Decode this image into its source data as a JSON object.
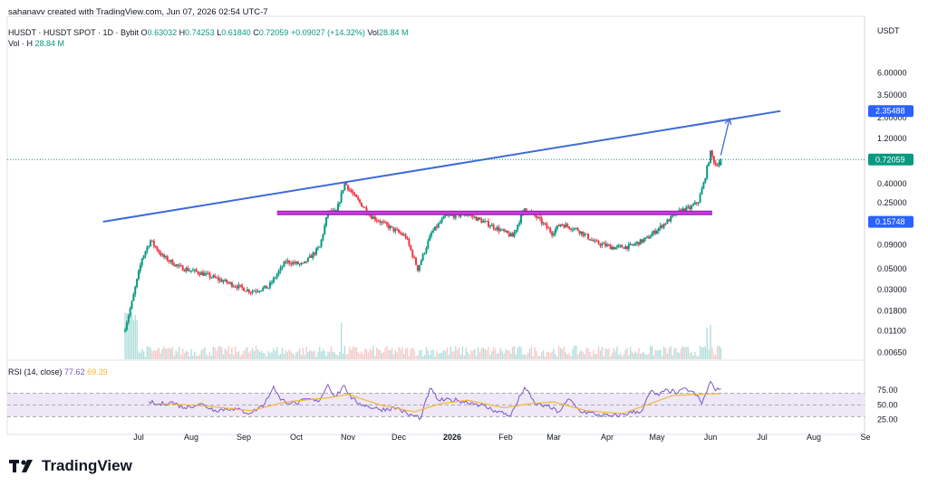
{
  "header": {
    "caption": "sahanavv created with TradingView.com, Jun 07, 2026 02:54 UTC-7",
    "symbol": "HUSDT · HUSDT SPOT · 1D · Bybit",
    "open_label": "O",
    "open": "0.63032",
    "high_label": "H",
    "high": "0.74253",
    "low_label": "L",
    "low": "0.61840",
    "close_label": "C",
    "close": "0.72059",
    "change": "+0.09027 (+14.32%)",
    "vol_label": "Vol",
    "vol": "28.84 M",
    "vol_h_label": "Vol · H",
    "vol_h": "28.84 M"
  },
  "rsi": {
    "label": "RSI (14, close)",
    "value": "77.62",
    "ma": "69.39"
  },
  "brand": "TradingView",
  "colors": {
    "up": "#089981",
    "down": "#f23645",
    "trendline": "#3d6bd6",
    "support": "#9c27b0",
    "support_core": "#e040fb",
    "rsi_line": "#7e57c2",
    "rsi_ma": "#f7b32b",
    "rsi_band": "#ede7f6",
    "price_badge": "#089981",
    "blue_badge": "#2962ff"
  },
  "chart_data": [
    {
      "type": "candlestick",
      "title": "HUSDT · HUSDT SPOT · 1D · Bybit",
      "currency": "USDT",
      "y_scale": "log",
      "ylim": [
        0.0055,
        9.0
      ],
      "y_ticks": [
        "6.00000",
        "3.50000",
        "2.00000",
        "1.20000",
        "0.72059",
        "0.40000",
        "0.25000",
        "0.15748",
        "0.09000",
        "0.05000",
        "0.03000",
        "0.01800",
        "0.01100",
        "0.00650"
      ],
      "y_tick_values": [
        6.0,
        3.5,
        2.0,
        1.2,
        0.72059,
        0.4,
        0.25,
        0.15748,
        0.09,
        0.05,
        0.03,
        0.018,
        0.011,
        0.0065
      ],
      "x_ticks": [
        "Jul",
        "Aug",
        "Sep",
        "Oct",
        "Nov",
        "Dec",
        "2026",
        "Feb",
        "Mar",
        "Apr",
        "May",
        "Jun",
        "Jul",
        "Aug",
        "Se"
      ],
      "x_tick_dates": [
        "2025-07-01",
        "2025-08-01",
        "2025-09-01",
        "2025-10-01",
        "2025-11-01",
        "2025-12-01",
        "2026-01-01",
        "2026-02-01",
        "2026-03-01",
        "2026-04-01",
        "2026-05-01",
        "2026-06-01",
        "2026-07-01",
        "2026-08-01",
        "2026-09-01"
      ],
      "price_badges": [
        {
          "value": "2.35488",
          "kind": "trendline"
        },
        {
          "value": "0.72059",
          "kind": "last"
        },
        {
          "value": "0.15748",
          "kind": "support"
        }
      ],
      "close_anchors": [
        {
          "date": "2025-06-23",
          "close": 0.012
        },
        {
          "date": "2025-06-27",
          "close": 0.022
        },
        {
          "date": "2025-07-03",
          "close": 0.065
        },
        {
          "date": "2025-07-08",
          "close": 0.1
        },
        {
          "date": "2025-07-15",
          "close": 0.068
        },
        {
          "date": "2025-07-25",
          "close": 0.052
        },
        {
          "date": "2025-08-07",
          "close": 0.045
        },
        {
          "date": "2025-08-22",
          "close": 0.036
        },
        {
          "date": "2025-09-05",
          "close": 0.029
        },
        {
          "date": "2025-09-15",
          "close": 0.032
        },
        {
          "date": "2025-09-25",
          "close": 0.06
        },
        {
          "date": "2025-10-05",
          "close": 0.055
        },
        {
          "date": "2025-10-15",
          "close": 0.085
        },
        {
          "date": "2025-10-20",
          "close": 0.2
        },
        {
          "date": "2025-10-25",
          "close": 0.2
        },
        {
          "date": "2025-10-30",
          "close": 0.41
        },
        {
          "date": "2025-11-05",
          "close": 0.29
        },
        {
          "date": "2025-11-15",
          "close": 0.18
        },
        {
          "date": "2025-11-28",
          "close": 0.13
        },
        {
          "date": "2025-12-05",
          "close": 0.11
        },
        {
          "date": "2025-12-12",
          "close": 0.05
        },
        {
          "date": "2025-12-20",
          "close": 0.12
        },
        {
          "date": "2025-12-28",
          "close": 0.18
        },
        {
          "date": "2026-01-10",
          "close": 0.19
        },
        {
          "date": "2026-01-25",
          "close": 0.14
        },
        {
          "date": "2026-02-05",
          "close": 0.11
        },
        {
          "date": "2026-02-12",
          "close": 0.22
        },
        {
          "date": "2026-02-20",
          "close": 0.17
        },
        {
          "date": "2026-02-28",
          "close": 0.12
        },
        {
          "date": "2026-03-05",
          "close": 0.15
        },
        {
          "date": "2026-03-15",
          "close": 0.13
        },
        {
          "date": "2026-03-25",
          "close": 0.095
        },
        {
          "date": "2026-04-05",
          "close": 0.084
        },
        {
          "date": "2026-04-15",
          "close": 0.087
        },
        {
          "date": "2026-04-25",
          "close": 0.105
        },
        {
          "date": "2026-05-05",
          "close": 0.15
        },
        {
          "date": "2026-05-15",
          "close": 0.21
        },
        {
          "date": "2026-05-20",
          "close": 0.22
        },
        {
          "date": "2026-05-25",
          "close": 0.26
        },
        {
          "date": "2026-05-28",
          "close": 0.4
        },
        {
          "date": "2026-06-01",
          "close": 0.85
        },
        {
          "date": "2026-06-04",
          "close": 0.63
        },
        {
          "date": "2026-06-07",
          "close": 0.72059
        }
      ],
      "annotations": [
        {
          "type": "trendline",
          "from": {
            "date": "2025-06-10",
            "price": 0.158
          },
          "to": {
            "date": "2026-07-12",
            "price": 2.35488
          }
        },
        {
          "type": "horizontal_support",
          "price": 0.196,
          "from_date": "2025-09-20",
          "to_date": "2026-06-02"
        },
        {
          "type": "arrow",
          "from": {
            "date": "2026-06-07",
            "price": 0.8
          },
          "to": {
            "date": "2026-06-12",
            "price": 1.95
          }
        }
      ]
    },
    {
      "type": "line",
      "title": "RSI (14, close)",
      "ylim": [
        15,
        100
      ],
      "y_ticks": [
        "75.00",
        "50.00",
        "25.00"
      ],
      "y_tick_values": [
        75,
        50,
        25
      ],
      "band": [
        30,
        70
      ],
      "series": [
        {
          "name": "RSI",
          "points": [
            {
              "date": "2025-07-07",
              "value": 56
            },
            {
              "date": "2025-07-12",
              "value": 50
            },
            {
              "date": "2025-07-20",
              "value": 55
            },
            {
              "date": "2025-07-28",
              "value": 45
            },
            {
              "date": "2025-08-06",
              "value": 52
            },
            {
              "date": "2025-08-15",
              "value": 41
            },
            {
              "date": "2025-08-25",
              "value": 44
            },
            {
              "date": "2025-09-05",
              "value": 36
            },
            {
              "date": "2025-09-13",
              "value": 52
            },
            {
              "date": "2025-09-18",
              "value": 82
            },
            {
              "date": "2025-09-22",
              "value": 58
            },
            {
              "date": "2025-10-01",
              "value": 52
            },
            {
              "date": "2025-10-08",
              "value": 60
            },
            {
              "date": "2025-10-14",
              "value": 55
            },
            {
              "date": "2025-10-20",
              "value": 85
            },
            {
              "date": "2025-10-24",
              "value": 64
            },
            {
              "date": "2025-10-30",
              "value": 83
            },
            {
              "date": "2025-11-03",
              "value": 60
            },
            {
              "date": "2025-11-10",
              "value": 50
            },
            {
              "date": "2025-11-20",
              "value": 42
            },
            {
              "date": "2025-11-30",
              "value": 45
            },
            {
              "date": "2025-12-06",
              "value": 34
            },
            {
              "date": "2025-12-14",
              "value": 28
            },
            {
              "date": "2025-12-19",
              "value": 78
            },
            {
              "date": "2025-12-24",
              "value": 58
            },
            {
              "date": "2026-01-04",
              "value": 58
            },
            {
              "date": "2026-01-15",
              "value": 52
            },
            {
              "date": "2026-01-26",
              "value": 40
            },
            {
              "date": "2026-02-04",
              "value": 32
            },
            {
              "date": "2026-02-12",
              "value": 80
            },
            {
              "date": "2026-02-18",
              "value": 52
            },
            {
              "date": "2026-02-25",
              "value": 48
            },
            {
              "date": "2026-03-04",
              "value": 38
            },
            {
              "date": "2026-03-10",
              "value": 60
            },
            {
              "date": "2026-03-16",
              "value": 40
            },
            {
              "date": "2026-03-25",
              "value": 34
            },
            {
              "date": "2026-04-04",
              "value": 30
            },
            {
              "date": "2026-04-14",
              "value": 36
            },
            {
              "date": "2026-04-22",
              "value": 40
            },
            {
              "date": "2026-04-27",
              "value": 73
            },
            {
              "date": "2026-05-02",
              "value": 66
            },
            {
              "date": "2026-05-07",
              "value": 76
            },
            {
              "date": "2026-05-13",
              "value": 70
            },
            {
              "date": "2026-05-18",
              "value": 78
            },
            {
              "date": "2026-05-24",
              "value": 66
            },
            {
              "date": "2026-05-27",
              "value": 52
            },
            {
              "date": "2026-06-01",
              "value": 90
            },
            {
              "date": "2026-06-04",
              "value": 74
            },
            {
              "date": "2026-06-07",
              "value": 77.62
            }
          ]
        },
        {
          "name": "RSI-based MA",
          "points": [
            {
              "date": "2025-07-15",
              "value": 52
            },
            {
              "date": "2025-08-10",
              "value": 48
            },
            {
              "date": "2025-09-05",
              "value": 40
            },
            {
              "date": "2025-09-25",
              "value": 55
            },
            {
              "date": "2025-10-20",
              "value": 62
            },
            {
              "date": "2025-11-01",
              "value": 68
            },
            {
              "date": "2025-11-20",
              "value": 50
            },
            {
              "date": "2025-12-10",
              "value": 38
            },
            {
              "date": "2025-12-25",
              "value": 52
            },
            {
              "date": "2026-01-10",
              "value": 58
            },
            {
              "date": "2026-01-31",
              "value": 45
            },
            {
              "date": "2026-02-15",
              "value": 52
            },
            {
              "date": "2026-03-01",
              "value": 55
            },
            {
              "date": "2026-03-20",
              "value": 40
            },
            {
              "date": "2026-04-10",
              "value": 35
            },
            {
              "date": "2026-04-25",
              "value": 50
            },
            {
              "date": "2026-05-10",
              "value": 66
            },
            {
              "date": "2026-05-25",
              "value": 68
            },
            {
              "date": "2026-06-07",
              "value": 69.39
            }
          ]
        }
      ]
    }
  ]
}
